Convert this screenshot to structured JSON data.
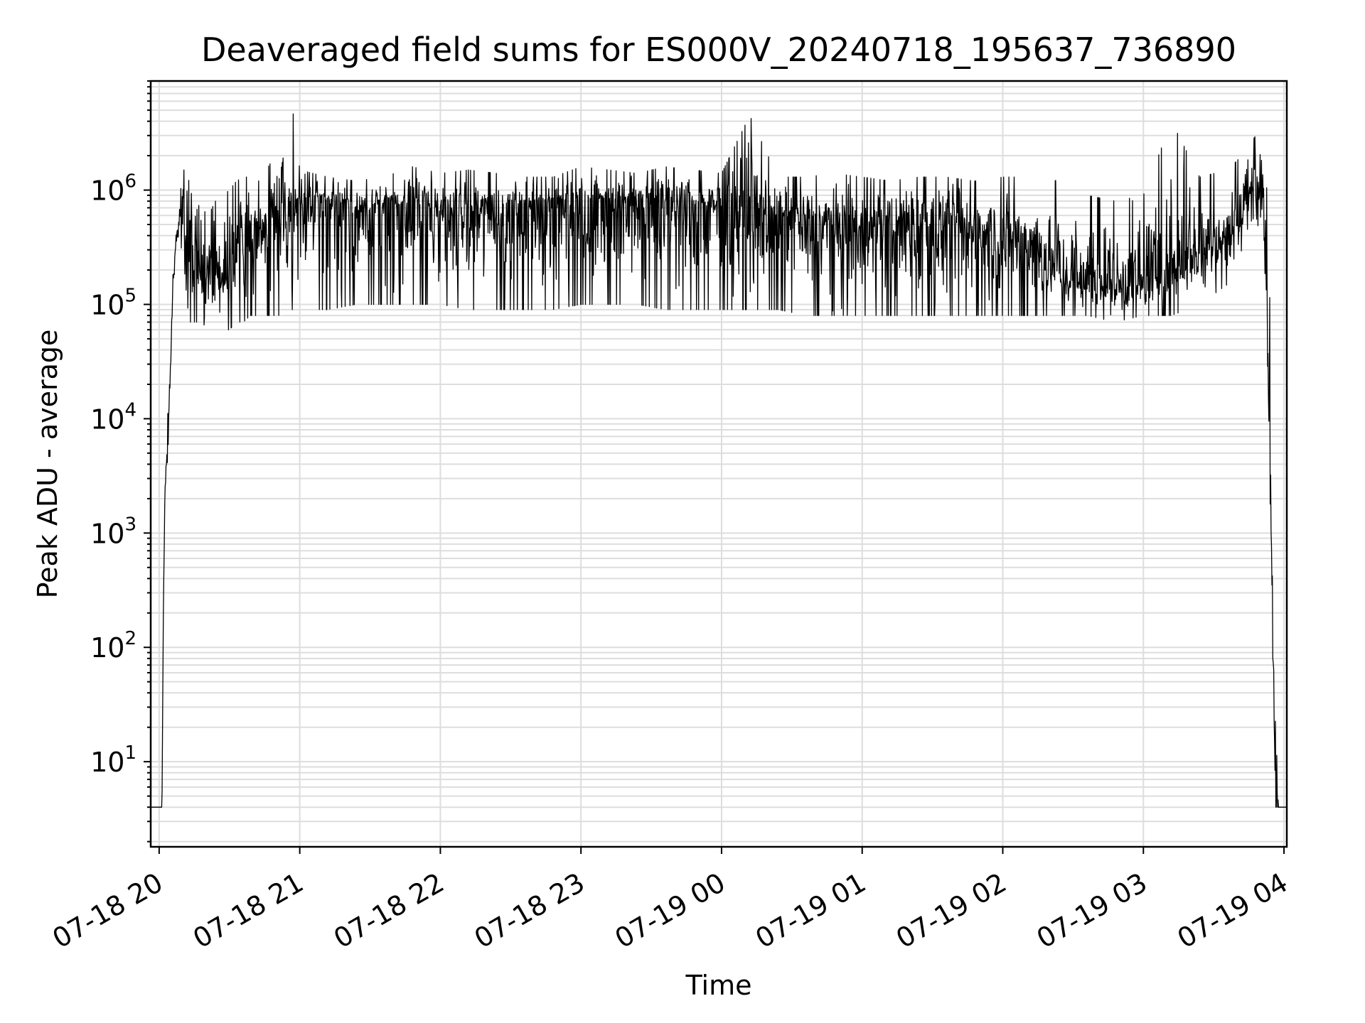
{
  "chart_data": {
    "type": "line",
    "title": "Deaveraged field sums for ES000V_20240718_195637_736890",
    "xlabel": "Time",
    "ylabel": "Peak ADU - average",
    "yscale": "log",
    "ylim": [
      1.8,
      9000000
    ],
    "xlim_hours": [
      -0.06,
      8.02
    ],
    "grid": true,
    "line_color": "#000000",
    "grid_color": "#dddddd",
    "x_ticks": [
      {
        "hour": 0,
        "label": "07-18 20"
      },
      {
        "hour": 1,
        "label": "07-18 21"
      },
      {
        "hour": 2,
        "label": "07-18 22"
      },
      {
        "hour": 3,
        "label": "07-18 23"
      },
      {
        "hour": 4,
        "label": "07-19 00"
      },
      {
        "hour": 5,
        "label": "07-19 01"
      },
      {
        "hour": 6,
        "label": "07-19 02"
      },
      {
        "hour": 7,
        "label": "07-19 03"
      },
      {
        "hour": 8,
        "label": "07-19 04"
      }
    ],
    "y_ticks": [
      {
        "value": 10,
        "base": "10",
        "exp": "1"
      },
      {
        "value": 100,
        "base": "10",
        "exp": "2"
      },
      {
        "value": 1000,
        "base": "10",
        "exp": "3"
      },
      {
        "value": 10000,
        "base": "10",
        "exp": "4"
      },
      {
        "value": 100000,
        "base": "10",
        "exp": "5"
      },
      {
        "value": 1000000,
        "base": "10",
        "exp": "6"
      }
    ],
    "series": [
      {
        "time_unit": "hours after 07-18 20:00",
        "x": [
          -0.06,
          -0.03,
          0.0,
          0.02,
          0.03,
          0.04,
          0.06,
          0.08,
          0.1,
          0.12,
          0.14,
          0.16,
          0.18,
          0.2,
          0.22,
          0.25,
          0.3,
          0.35,
          0.4,
          0.45,
          0.5,
          0.55,
          0.6,
          0.65,
          0.7,
          0.75,
          0.8,
          0.85,
          0.9,
          0.95,
          1.0,
          1.2,
          1.4,
          1.6,
          1.8,
          2.0,
          2.2,
          2.4,
          2.6,
          2.8,
          3.0,
          3.2,
          3.4,
          3.6,
          3.8,
          4.0,
          4.2,
          4.4,
          4.6,
          4.8,
          5.0,
          5.2,
          5.4,
          5.6,
          5.8,
          6.0,
          6.2,
          6.4,
          6.6,
          6.8,
          7.0,
          7.2,
          7.4,
          7.6,
          7.7,
          7.75,
          7.8,
          7.85,
          7.88,
          7.9,
          7.92,
          7.94,
          7.96,
          7.98,
          8.0,
          8.02
        ],
        "y_median": [
          4,
          4,
          4,
          4,
          200,
          2000,
          5000,
          30000,
          150000,
          400000,
          550000,
          600000,
          500000,
          400000,
          300000,
          250000,
          220000,
          200000,
          180000,
          200000,
          220000,
          300000,
          350000,
          400000,
          450000,
          500000,
          550000,
          600000,
          650000,
          700000,
          700000,
          800000,
          700000,
          750000,
          750000,
          700000,
          650000,
          700000,
          750000,
          800000,
          850000,
          800000,
          850000,
          800000,
          750000,
          700000,
          650000,
          600000,
          550000,
          500000,
          450000,
          500000,
          550000,
          500000,
          450000,
          400000,
          350000,
          180000,
          150000,
          140000,
          150000,
          200000,
          300000,
          400000,
          600000,
          1000000,
          1200000,
          800000,
          100000,
          5000,
          200,
          4,
          4,
          4,
          4,
          4
        ],
        "y_min": [
          4,
          4,
          4,
          4,
          200,
          1800,
          4000,
          25000,
          120000,
          350000,
          400000,
          300000,
          200000,
          100000,
          70000,
          70000,
          70000,
          60000,
          60000,
          60000,
          60000,
          70000,
          70000,
          80000,
          80000,
          80000,
          80000,
          80000,
          90000,
          90000,
          90000,
          90000,
          100000,
          100000,
          100000,
          100000,
          90000,
          90000,
          90000,
          90000,
          100000,
          100000,
          100000,
          90000,
          90000,
          90000,
          90000,
          90000,
          80000,
          80000,
          80000,
          80000,
          80000,
          80000,
          80000,
          80000,
          80000,
          80000,
          80000,
          70000,
          80000,
          80000,
          100000,
          150000,
          300000,
          500000,
          600000,
          300000,
          30000,
          1000,
          60,
          4,
          4,
          4,
          4,
          4
        ],
        "y_max": [
          4,
          4,
          4,
          4,
          300,
          3000,
          10000,
          60000,
          200000,
          500000,
          700000,
          1200000,
          2000000,
          1500000,
          1000000,
          800000,
          700000,
          600000,
          800000,
          900000,
          1000000,
          1200000,
          1300000,
          1300000,
          1500000,
          1400000,
          1800000,
          1200000,
          2500000,
          5000000,
          1500000,
          1300000,
          1200000,
          1300000,
          1600000,
          1400000,
          1500000,
          1400000,
          1300000,
          1300000,
          1600000,
          1500000,
          1400000,
          1600000,
          1500000,
          1400000,
          4500000,
          1300000,
          1300000,
          1400000,
          1300000,
          1200000,
          1300000,
          1300000,
          1200000,
          1300000,
          1300000,
          1200000,
          900000,
          800000,
          900000,
          4000000,
          1300000,
          1500000,
          2000000,
          2500000,
          3000000,
          1600000,
          1000000,
          100000,
          20000,
          60,
          4,
          4,
          4,
          4
        ]
      }
    ]
  }
}
